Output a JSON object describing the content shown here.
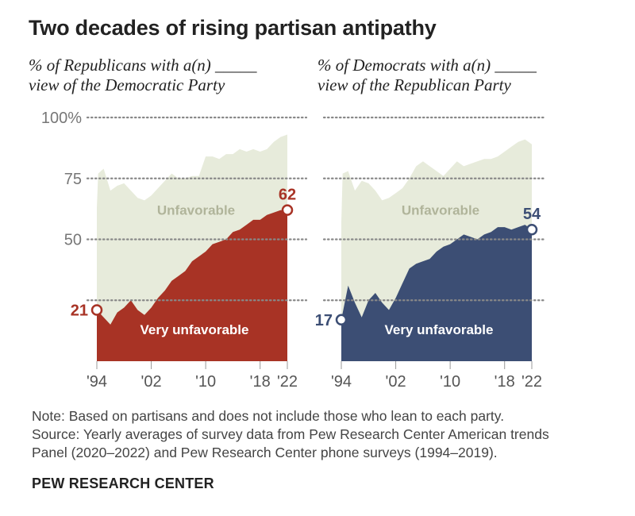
{
  "title": "Two decades of rising partisan antipathy",
  "note": [
    "Note: Based on partisans and does not include those who lean to each party.",
    "Source: Yearly averages of survey data from Pew Research Center American trends",
    "Panel (2020–2022) and Pew Research Center phone surveys (1994–2019)."
  ],
  "brand": "PEW RESEARCH CENTER",
  "colors": {
    "unfavorable": "#e7ebdb",
    "unfavorable_text": "#b0b49a",
    "rep": "#a83325",
    "dem": "#3c4e74",
    "grid": "#888888"
  },
  "chart_data": [
    {
      "type": "area",
      "panel": "left",
      "subtitle_lines": [
        "% of Republicans with a(n) _____",
        "view of the Democratic Party"
      ],
      "ylim": [
        0,
        100
      ],
      "yticks": [
        25,
        50,
        75,
        100
      ],
      "ytick_labels": [
        "",
        "50",
        "75",
        "100%"
      ],
      "xticks": [
        1994,
        2002,
        2010,
        2018,
        2022
      ],
      "xtick_labels": [
        "'94",
        "'02",
        "'10",
        "'18",
        "'22"
      ],
      "color_key": "rep",
      "series": [
        {
          "name": "Unfavorable",
          "x": [
            1994,
            1994.2,
            1995,
            1996,
            1997,
            1998,
            1999,
            2000,
            2001,
            2002,
            2003,
            2004,
            2005,
            2006,
            2007,
            2008,
            2009,
            2010,
            2011,
            2012,
            2013,
            2014,
            2015,
            2016,
            2017,
            2018,
            2019,
            2020,
            2021,
            2022
          ],
          "values": [
            63,
            77,
            79,
            70,
            72,
            73,
            70,
            67,
            66,
            68,
            71,
            74,
            77,
            75,
            75,
            76,
            76,
            84,
            84,
            83,
            85,
            85,
            87,
            86,
            87,
            86,
            87,
            90,
            92,
            93
          ]
        },
        {
          "name": "Very unfavorable",
          "x": [
            1994,
            1995,
            1996,
            1997,
            1998,
            1999,
            2000,
            2001,
            2002,
            2003,
            2004,
            2005,
            2006,
            2007,
            2008,
            2009,
            2010,
            2011,
            2012,
            2013,
            2014,
            2015,
            2016,
            2017,
            2018,
            2019,
            2020,
            2021,
            2022
          ],
          "values": [
            21,
            18,
            15,
            20,
            22,
            25,
            21,
            19,
            22,
            26,
            29,
            33,
            35,
            37,
            41,
            43,
            45,
            48,
            49,
            50,
            53,
            54,
            56,
            58,
            58,
            60,
            61,
            62,
            62
          ]
        }
      ],
      "area_labels": {
        "unfavorable": "Unfavorable",
        "very": "Very unfavorable"
      },
      "start_value": 21,
      "end_value": 62
    },
    {
      "type": "area",
      "panel": "right",
      "subtitle_lines": [
        "% of Democrats with a(n) _____",
        "view of the Republican Party"
      ],
      "ylim": [
        0,
        100
      ],
      "yticks": [
        25,
        50,
        75,
        100
      ],
      "ytick_labels": [],
      "xticks": [
        1994,
        2002,
        2010,
        2018,
        2022
      ],
      "xtick_labels": [
        "'94",
        "'02",
        "'10",
        "'18",
        "'22"
      ],
      "color_key": "dem",
      "series": [
        {
          "name": "Unfavorable",
          "x": [
            1994,
            1994.2,
            1995,
            1996,
            1997,
            1998,
            1999,
            2000,
            2001,
            2002,
            2003,
            2004,
            2005,
            2006,
            2007,
            2008,
            2009,
            2010,
            2011,
            2012,
            2013,
            2014,
            2015,
            2016,
            2017,
            2018,
            2019,
            2020,
            2021,
            2022
          ],
          "values": [
            57,
            77,
            78,
            70,
            74,
            73,
            70,
            66,
            67,
            69,
            71,
            75,
            80,
            82,
            80,
            78,
            76,
            79,
            82,
            80,
            81,
            82,
            83,
            83,
            84,
            86,
            88,
            90,
            91,
            89
          ]
        },
        {
          "name": "Very unfavorable",
          "x": [
            1994,
            1995,
            1996,
            1997,
            1998,
            1999,
            2000,
            2001,
            2002,
            2003,
            2004,
            2005,
            2006,
            2007,
            2008,
            2009,
            2010,
            2011,
            2012,
            2013,
            2014,
            2015,
            2016,
            2017,
            2018,
            2019,
            2020,
            2021,
            2022
          ],
          "values": [
            17,
            31,
            24,
            18,
            25,
            28,
            24,
            21,
            26,
            32,
            38,
            40,
            41,
            42,
            45,
            47,
            48,
            50,
            52,
            51,
            50,
            52,
            53,
            55,
            55,
            54,
            55,
            56,
            54
          ]
        }
      ],
      "area_labels": {
        "unfavorable": "Unfavorable",
        "very": "Very unfavorable"
      },
      "start_value": 17,
      "end_value": 54
    }
  ]
}
